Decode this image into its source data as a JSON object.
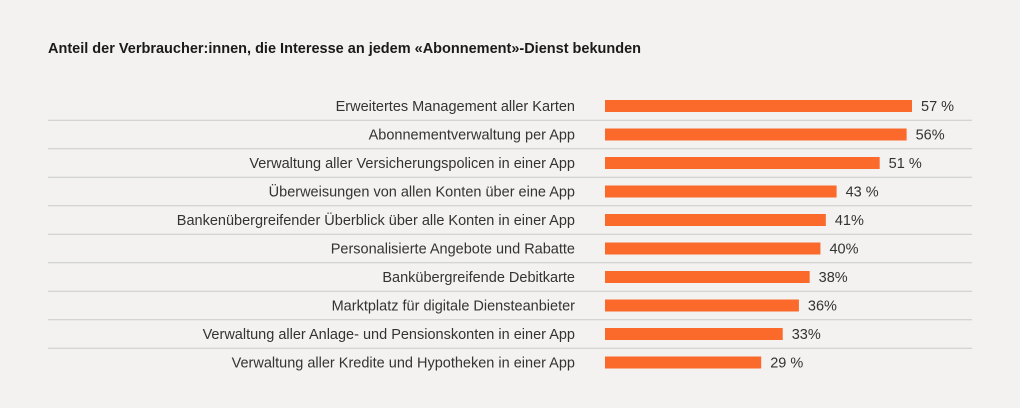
{
  "colors": {
    "bar": "#fb6a2b",
    "divider": "#c9c9c9",
    "background": "#f3f2f0"
  },
  "chart_data": {
    "type": "bar",
    "orientation": "horizontal",
    "title": "Anteil der Verbraucher:innen, die Interesse an jedem «Abonnement»-Dienst bekunden",
    "categories": [
      "Erweitertes Management aller Karten",
      "Abonnementverwaltung per App",
      "Verwaltung aller Versicherungspolicen in einer App",
      "Überweisungen von allen Konten über eine App",
      "Bankenübergreifender Überblick über alle Konten in einer App",
      "Personalisierte Angebote und Rabatte",
      "Bankübergreifende Debitkarte",
      "Marktplatz für digitale Diensteanbieter",
      "Verwaltung aller Anlage- und Pensionskonten in einer App",
      "Verwaltung aller Kredite und Hypotheken in einer App"
    ],
    "values": [
      57,
      56,
      51,
      43,
      41,
      40,
      38,
      36,
      33,
      29
    ],
    "value_labels": [
      "57 %",
      "56%",
      "51 %",
      "43 %",
      "41%",
      "40%",
      "38%",
      "36%",
      "33%",
      "29 %"
    ],
    "unit": "%",
    "xlim": [
      0,
      57
    ],
    "grid": false,
    "legend": "none"
  }
}
